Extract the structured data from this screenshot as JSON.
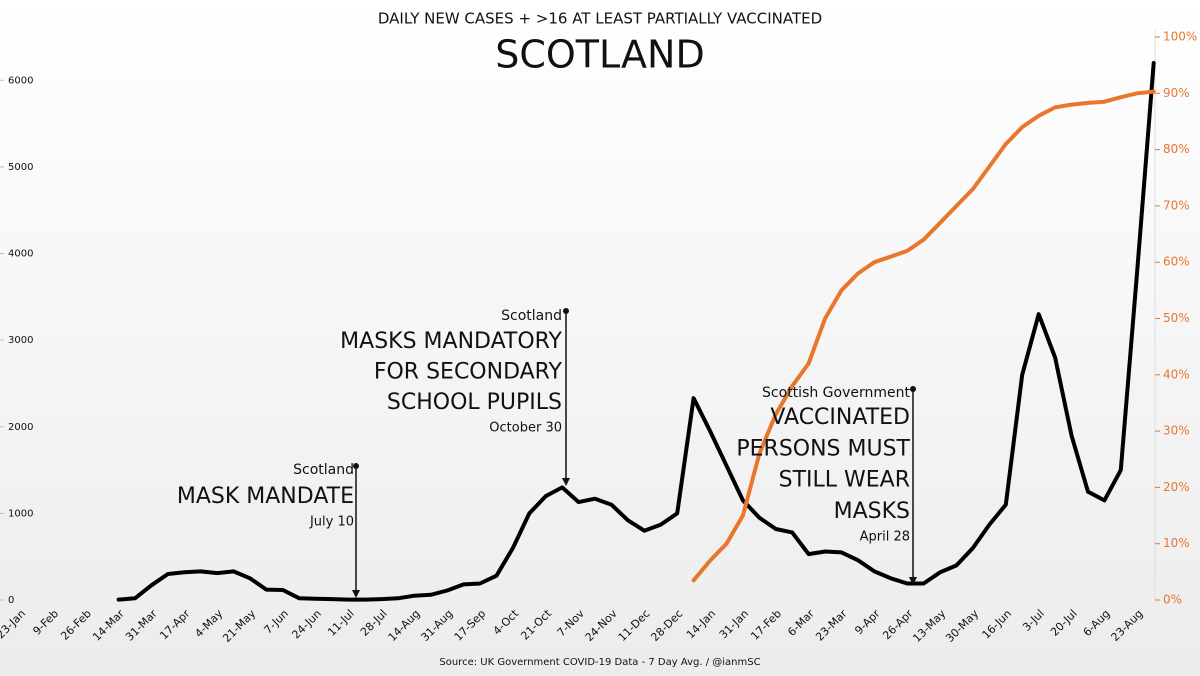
{
  "chart_data": {
    "type": "line",
    "title": "DAILY NEW CASES + >16 AT LEAST PARTIALLY VACCINATED",
    "subtitle": "SCOTLAND",
    "source": "Source: UK Government COVID-19 Data - 7 Day Avg. / @ianmSC",
    "categories": [
      "23-Jan",
      null,
      "9-Feb",
      null,
      "26-Feb",
      null,
      "14-Mar",
      null,
      "31-Mar",
      null,
      "17-Apr",
      null,
      "4-May",
      null,
      "21-May",
      null,
      "7-Jun",
      null,
      "24-Jun",
      null,
      "11-Jul",
      null,
      "28-Jul",
      null,
      "14-Aug",
      null,
      "31-Aug",
      null,
      "17-Sep",
      null,
      "4-Oct",
      null,
      "21-Oct",
      null,
      "7-Nov",
      null,
      "24-Nov",
      null,
      "11-Dec",
      null,
      "28-Dec",
      null,
      "14-Jan",
      null,
      "31-Jan",
      null,
      "17-Feb",
      null,
      "6-Mar",
      null,
      "23-Mar",
      null,
      "9-Apr",
      null,
      "26-Apr",
      null,
      "13-May",
      null,
      "30-May",
      null,
      "16-Jun",
      null,
      "3-Jul",
      null,
      "20-Jul",
      null,
      "6-Aug",
      null,
      "23-Aug",
      null
    ],
    "series": [
      {
        "color": "#000000",
        "values": [
          null,
          null,
          null,
          null,
          null,
          null,
          5,
          20,
          170,
          300,
          320,
          330,
          310,
          330,
          250,
          120,
          115,
          20,
          15,
          10,
          5,
          5,
          10,
          20,
          50,
          60,
          110,
          180,
          190,
          280,
          600,
          1000,
          1200,
          1300,
          1130,
          1170,
          1100,
          920,
          800,
          870,
          1000,
          2330,
          1950,
          1550,
          1150,
          950,
          820,
          780,
          530,
          560,
          550,
          460,
          330,
          250,
          190,
          190,
          320,
          400,
          600,
          870,
          1100,
          2600,
          3300,
          2800,
          1900,
          1250,
          1150,
          1500,
          3800,
          6200
        ]
      },
      {
        "color": "#e8772e",
        "axis": "y2",
        "values": [
          null,
          null,
          null,
          null,
          null,
          null,
          null,
          null,
          null,
          null,
          null,
          null,
          null,
          null,
          null,
          null,
          null,
          null,
          null,
          null,
          null,
          null,
          null,
          null,
          null,
          null,
          null,
          null,
          null,
          null,
          null,
          null,
          null,
          null,
          null,
          null,
          null,
          null,
          null,
          null,
          null,
          3.5,
          7,
          10,
          15,
          26,
          33,
          38,
          42,
          50,
          55,
          58,
          60,
          61,
          62,
          64,
          67,
          70,
          73,
          77,
          81,
          84,
          86,
          87.5,
          88,
          88.3,
          88.5,
          89.3,
          90,
          90.3
        ]
      }
    ],
    "ylim": [
      0,
      6500
    ],
    "yticks": [
      0,
      1000,
      2000,
      3000,
      4000,
      5000,
      6000
    ],
    "y2lim": [
      0,
      100
    ],
    "y2ticks": [
      {
        "value": 0,
        "label": "0%"
      },
      {
        "value": 10,
        "label": "10%"
      },
      {
        "value": 20,
        "label": "20%"
      },
      {
        "value": 30,
        "label": "30%"
      },
      {
        "value": 40,
        "label": "40%"
      },
      {
        "value": 50,
        "label": "50%"
      },
      {
        "value": 60,
        "label": "60%"
      },
      {
        "value": 70,
        "label": "70%"
      },
      {
        "value": 80,
        "label": "80%"
      },
      {
        "value": 90,
        "label": "90%"
      },
      {
        "value": 100,
        "label": "100%"
      }
    ],
    "annotations": [
      {
        "source": "Scotland",
        "lines": [
          "MASK MANDATE"
        ],
        "date": "July 10"
      },
      {
        "source": "Scotland",
        "lines": [
          "MASKS MANDATORY",
          "FOR SECONDARY",
          "SCHOOL PUPILS"
        ],
        "date": "October 30"
      },
      {
        "source": "Scottish Government",
        "lines": [
          "VACCINATED",
          "PERSONS MUST",
          "STILL WEAR",
          "MASKS"
        ],
        "date": "April 28"
      }
    ]
  }
}
